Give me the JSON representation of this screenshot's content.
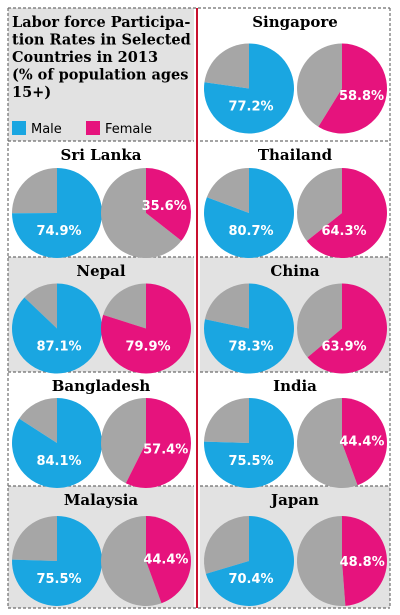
{
  "title_lines": [
    "Labor force Participa-",
    "tion Rates in Selected",
    "Countries in 2013",
    "(% of population ages",
    "15+)"
  ],
  "legend": {
    "male_label": "Male",
    "female_label": "Female"
  },
  "colors": {
    "male": "#1AA6E1",
    "female": "#E6137D",
    "remainder": "#A6A6A6",
    "shaded_panel": "#E2E2E2",
    "divider": "#C8102E",
    "dashed": "#6E6E6E",
    "text": "#000000",
    "label": "#ffffff"
  },
  "chart_data": {
    "type": "pie",
    "title": "Labor force Participation Rates in Selected Countries in 2013 (% of population ages 15+)",
    "unit": "%",
    "series_names": [
      "Male",
      "Female"
    ],
    "countries": [
      {
        "name": "Singapore",
        "male": 77.2,
        "female": 58.8,
        "male_label": "77.2%",
        "female_label": "58.8%"
      },
      {
        "name": "Sri Lanka",
        "male": 74.9,
        "female": 35.6,
        "male_label": "74.9%",
        "female_label": "35.6%"
      },
      {
        "name": "Thailand",
        "male": 80.7,
        "female": 64.3,
        "male_label": "80.7%",
        "female_label": "64.3%"
      },
      {
        "name": "Nepal",
        "male": 87.1,
        "female": 79.9,
        "male_label": "87.1%",
        "female_label": "79.9%"
      },
      {
        "name": "China",
        "male": 78.3,
        "female": 63.9,
        "male_label": "78.3%",
        "female_label": "63.9%"
      },
      {
        "name": "Bangladesh",
        "male": 84.1,
        "female": 57.4,
        "male_label": "84.1%",
        "female_label": "57.4%"
      },
      {
        "name": "India",
        "male": 75.5,
        "female": 44.4,
        "male_label": "75.5%",
        "female_label": "44.4%"
      },
      {
        "name": "Malaysia",
        "male": 75.5,
        "female": 44.4,
        "male_label": "75.5%",
        "female_label": "44.4%"
      },
      {
        "name": "Japan",
        "male": 70.4,
        "female": 48.8,
        "male_label": "70.4%",
        "female_label": "48.8%"
      }
    ]
  }
}
